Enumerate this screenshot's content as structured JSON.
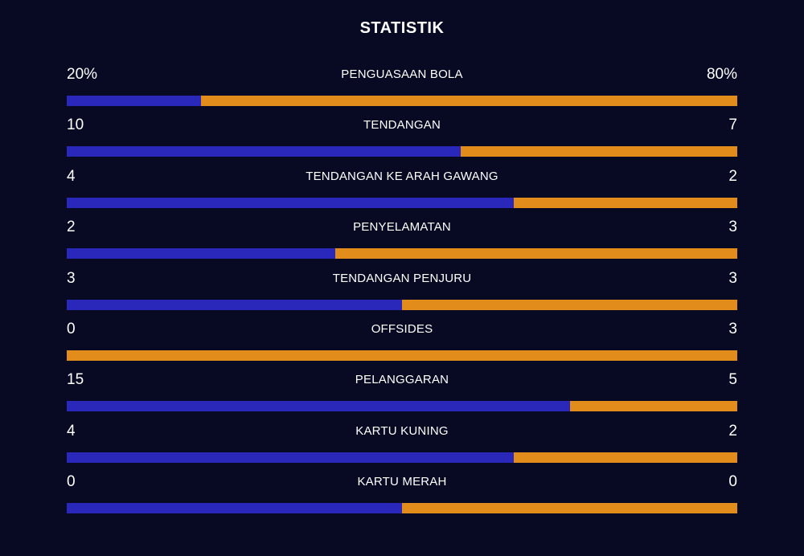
{
  "title": "STATISTIK",
  "colors": {
    "background": "#080a24",
    "home": "#2a27bb",
    "away": "#e28c1b",
    "text": "#ffffff"
  },
  "stats": [
    {
      "label": "PENGUASAAN BOLA",
      "home": "20%",
      "away": "80%",
      "home_share": 0.2
    },
    {
      "label": "TENDANGAN",
      "home": "10",
      "away": "7",
      "home_share": 0.588
    },
    {
      "label": "TENDANGAN KE ARAH GAWANG",
      "home": "4",
      "away": "2",
      "home_share": 0.667
    },
    {
      "label": "PENYELAMATAN",
      "home": "2",
      "away": "3",
      "home_share": 0.4
    },
    {
      "label": "TENDANGAN PENJURU",
      "home": "3",
      "away": "3",
      "home_share": 0.5
    },
    {
      "label": "OFFSIDES",
      "home": "0",
      "away": "3",
      "home_share": 0.0
    },
    {
      "label": "PELANGGARAN",
      "home": "15",
      "away": "5",
      "home_share": 0.75
    },
    {
      "label": "KARTU KUNING",
      "home": "4",
      "away": "2",
      "home_share": 0.667
    },
    {
      "label": "KARTU MERAH",
      "home": "0",
      "away": "0",
      "home_share": 0.5
    }
  ]
}
